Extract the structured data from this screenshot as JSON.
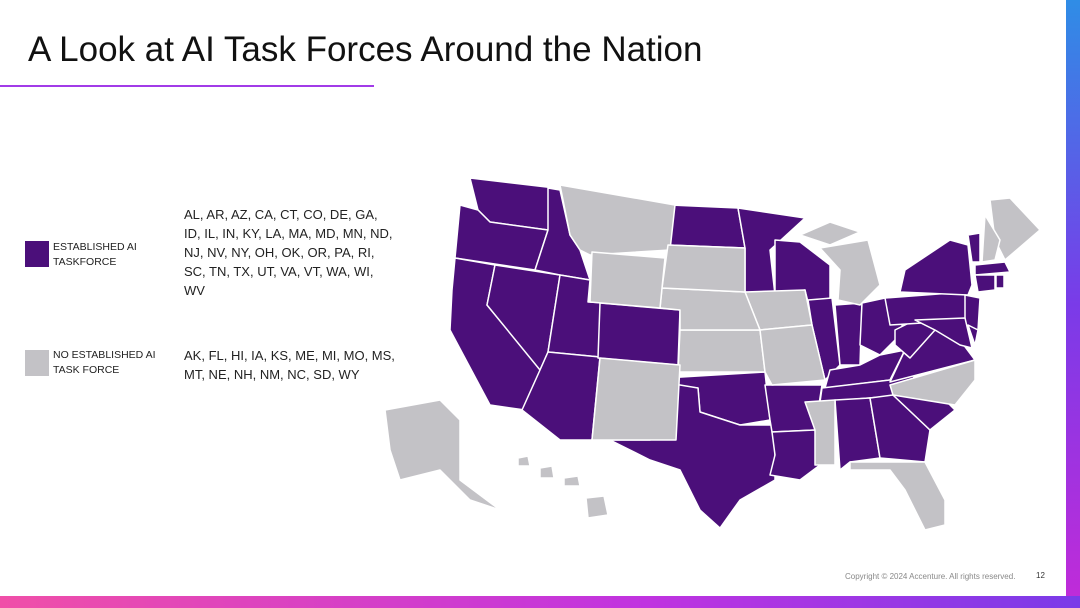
{
  "title": "A Look at AI Task Forces Around the Nation",
  "legend": [
    {
      "label": "ESTABLISHED AI TASKFORCE",
      "color": "#4b0f7a",
      "states": "AL, AR, AZ, CA, CT, CO, DE, GA, ID, IL, IN, KY, LA, MA, MD, MN, ND, NJ, NV, NY, OH, OK, OR, PA, RI, SC, TN, TX, UT, VA, VT, WA, WI, WV"
    },
    {
      "label": "NO ESTABLISHED AI TASK FORCE",
      "color": "#c3c2c6",
      "states": "AK, FL, HI, IA, KS, ME, MI, MO, MS, MT, NE, NH, NM, NC, SD, WY"
    }
  ],
  "footer": {
    "copyright": "Copyright © 2024 Accenture. All rights reserved.",
    "page": "12"
  }
}
